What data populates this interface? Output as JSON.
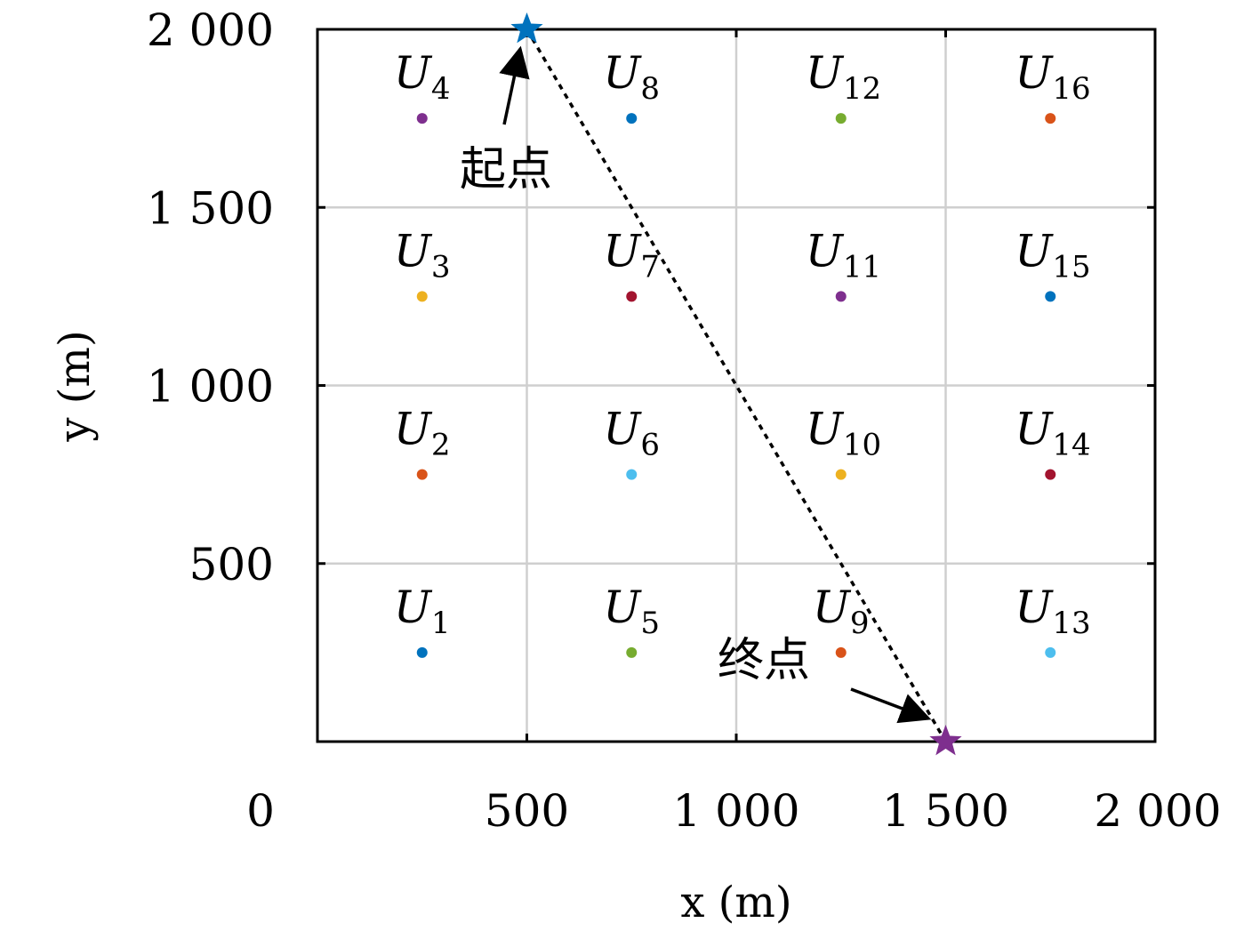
{
  "chart_data": {
    "type": "scatter",
    "xlabel": "x (m)",
    "ylabel": "y (m)",
    "xlim": [
      0,
      2000
    ],
    "ylim": [
      0,
      2000
    ],
    "x_ticks": [
      0,
      500,
      1000,
      1500,
      2000
    ],
    "y_ticks": [
      500,
      1000,
      1500,
      2000
    ],
    "x_tick_labels": [
      "0",
      "500",
      "1 000",
      "1 500",
      "2 000"
    ],
    "y_tick_labels": [
      "500",
      "1 000",
      "1 500",
      "2 000"
    ],
    "grid": true,
    "users": [
      {
        "label": "U",
        "sub": "1",
        "x": 250,
        "y": 250,
        "color": "#0072BD"
      },
      {
        "label": "U",
        "sub": "2",
        "x": 250,
        "y": 750,
        "color": "#D95319"
      },
      {
        "label": "U",
        "sub": "3",
        "x": 250,
        "y": 1250,
        "color": "#EDB120"
      },
      {
        "label": "U",
        "sub": "4",
        "x": 250,
        "y": 1750,
        "color": "#7E2F8E"
      },
      {
        "label": "U",
        "sub": "5",
        "x": 750,
        "y": 250,
        "color": "#77AC30"
      },
      {
        "label": "U",
        "sub": "6",
        "x": 750,
        "y": 750,
        "color": "#4DBEEE"
      },
      {
        "label": "U",
        "sub": "7",
        "x": 750,
        "y": 1250,
        "color": "#A2142F"
      },
      {
        "label": "U",
        "sub": "8",
        "x": 750,
        "y": 1750,
        "color": "#0072BD"
      },
      {
        "label": "U",
        "sub": "9",
        "x": 1250,
        "y": 250,
        "color": "#D95319"
      },
      {
        "label": "U",
        "sub": "10",
        "x": 1250,
        "y": 750,
        "color": "#EDB120"
      },
      {
        "label": "U",
        "sub": "11",
        "x": 1250,
        "y": 1250,
        "color": "#7E2F8E"
      },
      {
        "label": "U",
        "sub": "12",
        "x": 1250,
        "y": 1750,
        "color": "#77AC30"
      },
      {
        "label": "U",
        "sub": "13",
        "x": 1750,
        "y": 250,
        "color": "#4DBEEE"
      },
      {
        "label": "U",
        "sub": "14",
        "x": 1750,
        "y": 750,
        "color": "#A2142F"
      },
      {
        "label": "U",
        "sub": "15",
        "x": 1750,
        "y": 1250,
        "color": "#0072BD"
      },
      {
        "label": "U",
        "sub": "16",
        "x": 1750,
        "y": 1750,
        "color": "#D95319"
      }
    ],
    "trajectory": {
      "start": {
        "x": 500,
        "y": 2000,
        "color": "#0072BD"
      },
      "end": {
        "x": 1500,
        "y": 0,
        "color": "#7E2F8E"
      },
      "style": "dotted"
    },
    "annotations": [
      {
        "text": "起点",
        "target": "start"
      },
      {
        "text": "终点",
        "target": "end"
      }
    ]
  }
}
